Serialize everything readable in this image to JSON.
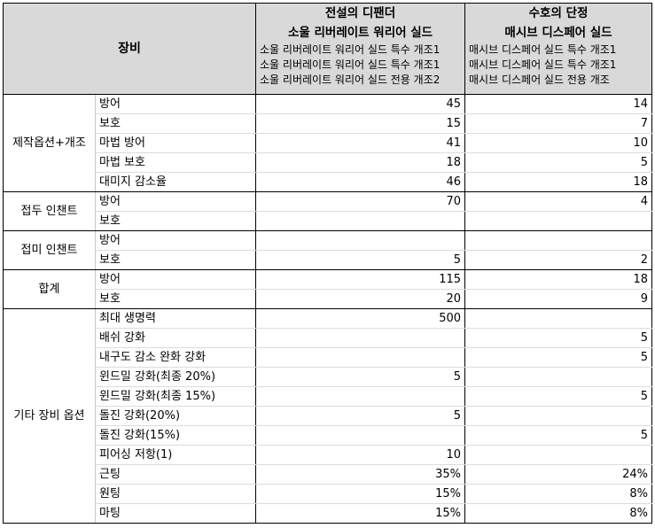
{
  "header": {
    "equipment_label": "장비",
    "columns": [
      {
        "title1": "전설의 디팬더",
        "title2": "소울 리버레이트 워리어 실드",
        "mods": [
          "소울 리버레이트 워리어 실드 특수 개조1",
          "소울 리버레이트 워리어 실드 특수 개조1",
          "소울 리버레이트 워리어 실드 전용 개조2"
        ]
      },
      {
        "title1": "수호의 단정",
        "title2": "매시브 디스페어 실드",
        "mods": [
          "매시브 디스페어 실드 특수 개조1",
          "매시브 디스페어 실드 특수 개조1",
          "매시브 디스페어 실드 전용 개조"
        ]
      }
    ]
  },
  "groups": [
    {
      "label": "제작옵션+개조",
      "rows": [
        {
          "label": "방어",
          "v1": "45",
          "v2": "14"
        },
        {
          "label": "보호",
          "v1": "15",
          "v2": "7"
        },
        {
          "label": "마법 방어",
          "v1": "41",
          "v2": "10"
        },
        {
          "label": "마법 보호",
          "v1": "18",
          "v2": "5"
        },
        {
          "label": "대미지 감소율",
          "v1": "46",
          "v2": "18"
        }
      ]
    },
    {
      "label": "접두 인챈트",
      "rows": [
        {
          "label": "방어",
          "v1": "70",
          "v2": "4"
        },
        {
          "label": "보호",
          "v1": "",
          "v2": ""
        }
      ]
    },
    {
      "label": "접미 인챈트",
      "rows": [
        {
          "label": "방어",
          "v1": "",
          "v2": ""
        },
        {
          "label": "보호",
          "v1": "5",
          "v2": "2"
        }
      ]
    },
    {
      "label": "합계",
      "rows": [
        {
          "label": "방어",
          "v1": "115",
          "v2": "18"
        },
        {
          "label": "보호",
          "v1": "20",
          "v2": "9"
        }
      ]
    },
    {
      "label": "기타 장비 옵션",
      "rows": [
        {
          "label": "최대 생명력",
          "v1": "500",
          "v2": ""
        },
        {
          "label": "배쉬 강화",
          "v1": "",
          "v2": "5"
        },
        {
          "label": "내구도 감소 완화 강화",
          "v1": "",
          "v2": "5"
        },
        {
          "label": "윈드밀 강화(최종 20%)",
          "v1": "5",
          "v2": ""
        },
        {
          "label": "윈드밀 강화(최종 15%)",
          "v1": "",
          "v2": "5"
        },
        {
          "label": "돌진 강화(20%)",
          "v1": "5",
          "v2": ""
        },
        {
          "label": "돌진 강화(15%)",
          "v1": "",
          "v2": "5"
        },
        {
          "label": "피어싱 저항(1)",
          "v1": "10",
          "v2": ""
        },
        {
          "label": "근팅",
          "v1": "35%",
          "v2": "24%"
        },
        {
          "label": "원팅",
          "v1": "15%",
          "v2": "8%"
        },
        {
          "label": "마팅",
          "v1": "15%",
          "v2": "8%"
        }
      ]
    }
  ]
}
